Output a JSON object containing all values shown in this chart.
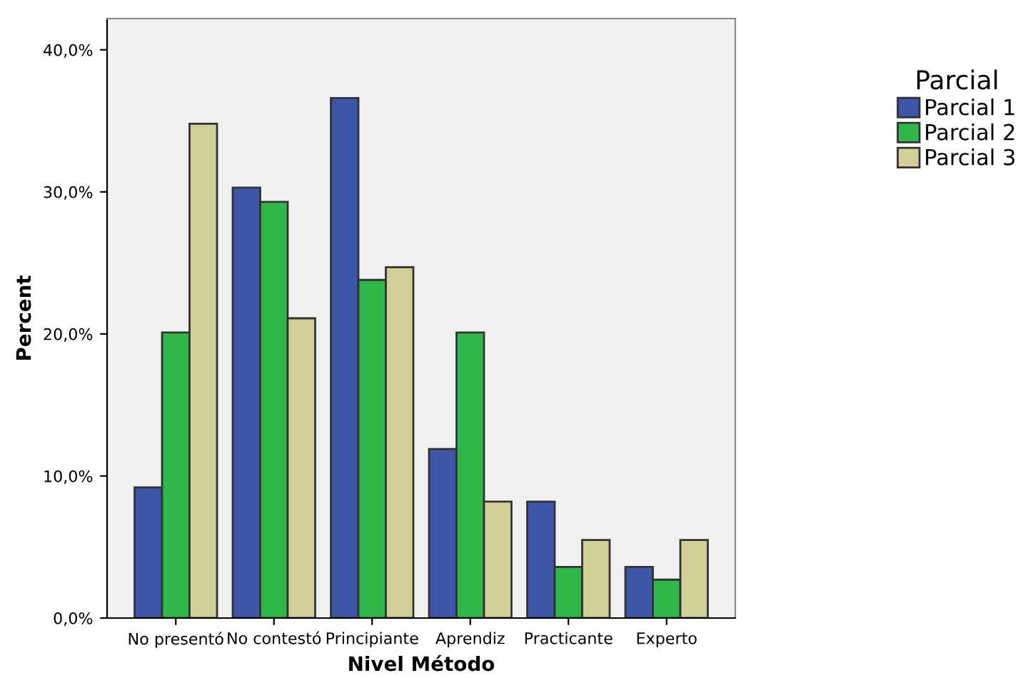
{
  "chart_data": {
    "type": "bar",
    "xlabel": "Nivel Método",
    "ylabel": "Percent",
    "legend_title": "Parcial",
    "legend": "top right",
    "categories": [
      "No presentó",
      "No contestó",
      "Principiante",
      "Aprendiz",
      "Practicante",
      "Experto"
    ],
    "series": [
      {
        "name": "Parcial 1",
        "color": "#3d56a8",
        "values": [
          9.2,
          30.3,
          36.6,
          11.9,
          8.2,
          3.6
        ]
      },
      {
        "name": "Parcial 2",
        "color": "#2eb84a",
        "values": [
          20.1,
          29.3,
          23.8,
          20.1,
          3.6,
          2.7
        ]
      },
      {
        "name": "Parcial 3",
        "color": "#d3cf98",
        "values": [
          34.8,
          21.1,
          24.7,
          8.2,
          5.5,
          5.5
        ]
      }
    ],
    "ylim": [
      0,
      42.2
    ],
    "yticks": [
      {
        "value": 0,
        "label": "0,0%"
      },
      {
        "value": 10,
        "label": "10,0%"
      },
      {
        "value": 20,
        "label": "20,0%"
      },
      {
        "value": 30,
        "label": "30,0%"
      },
      {
        "value": 40,
        "label": "40,0%"
      }
    ],
    "grid": false
  }
}
